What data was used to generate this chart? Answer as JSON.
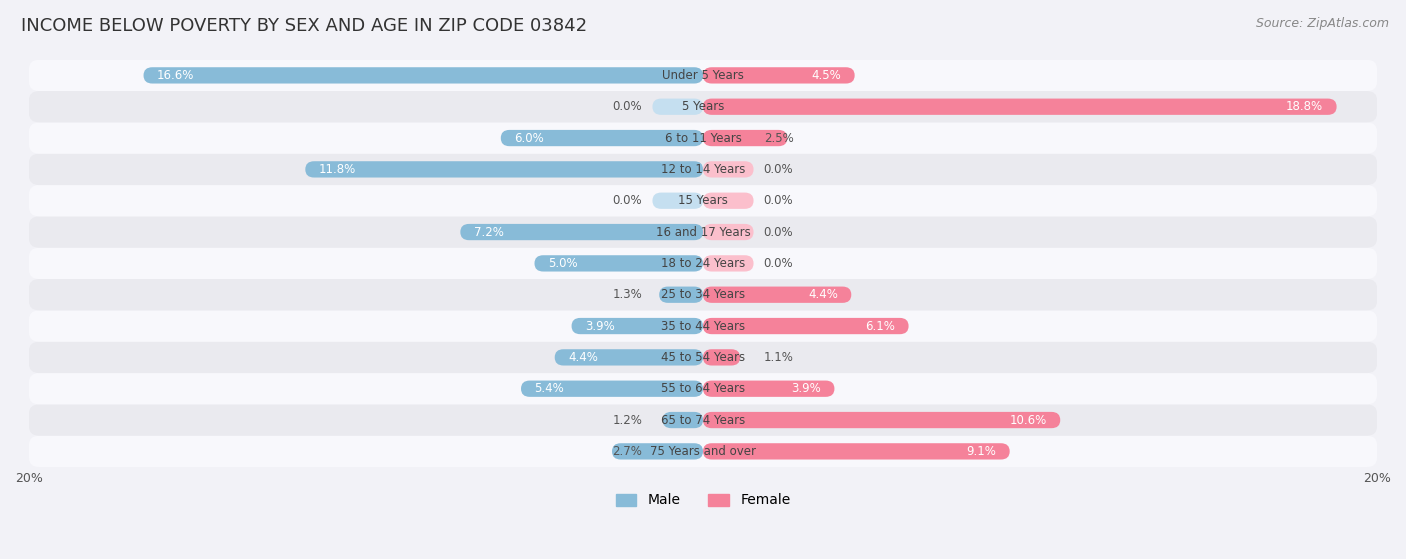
{
  "title": "INCOME BELOW POVERTY BY SEX AND AGE IN ZIP CODE 03842",
  "source": "Source: ZipAtlas.com",
  "categories": [
    "Under 5 Years",
    "5 Years",
    "6 to 11 Years",
    "12 to 14 Years",
    "15 Years",
    "16 and 17 Years",
    "18 to 24 Years",
    "25 to 34 Years",
    "35 to 44 Years",
    "45 to 54 Years",
    "55 to 64 Years",
    "65 to 74 Years",
    "75 Years and over"
  ],
  "male": [
    16.6,
    0.0,
    6.0,
    11.8,
    0.0,
    7.2,
    5.0,
    1.3,
    3.9,
    4.4,
    5.4,
    1.2,
    2.7
  ],
  "female": [
    4.5,
    18.8,
    2.5,
    0.0,
    0.0,
    0.0,
    0.0,
    4.4,
    6.1,
    1.1,
    3.9,
    10.6,
    9.1
  ],
  "male_color": "#88bbd8",
  "female_color": "#f5829a",
  "male_color_zero": "#c5dff0",
  "female_color_zero": "#fbbfcc",
  "bar_height": 0.52,
  "xlim": 20.0,
  "background_color": "#f2f2f7",
  "row_bg_odd": "#f8f8fc",
  "row_bg_even": "#eaeaef",
  "title_fontsize": 13,
  "source_fontsize": 9,
  "label_fontsize": 8.5,
  "category_fontsize": 8.5,
  "legend_fontsize": 10,
  "axis_label_fontsize": 9
}
